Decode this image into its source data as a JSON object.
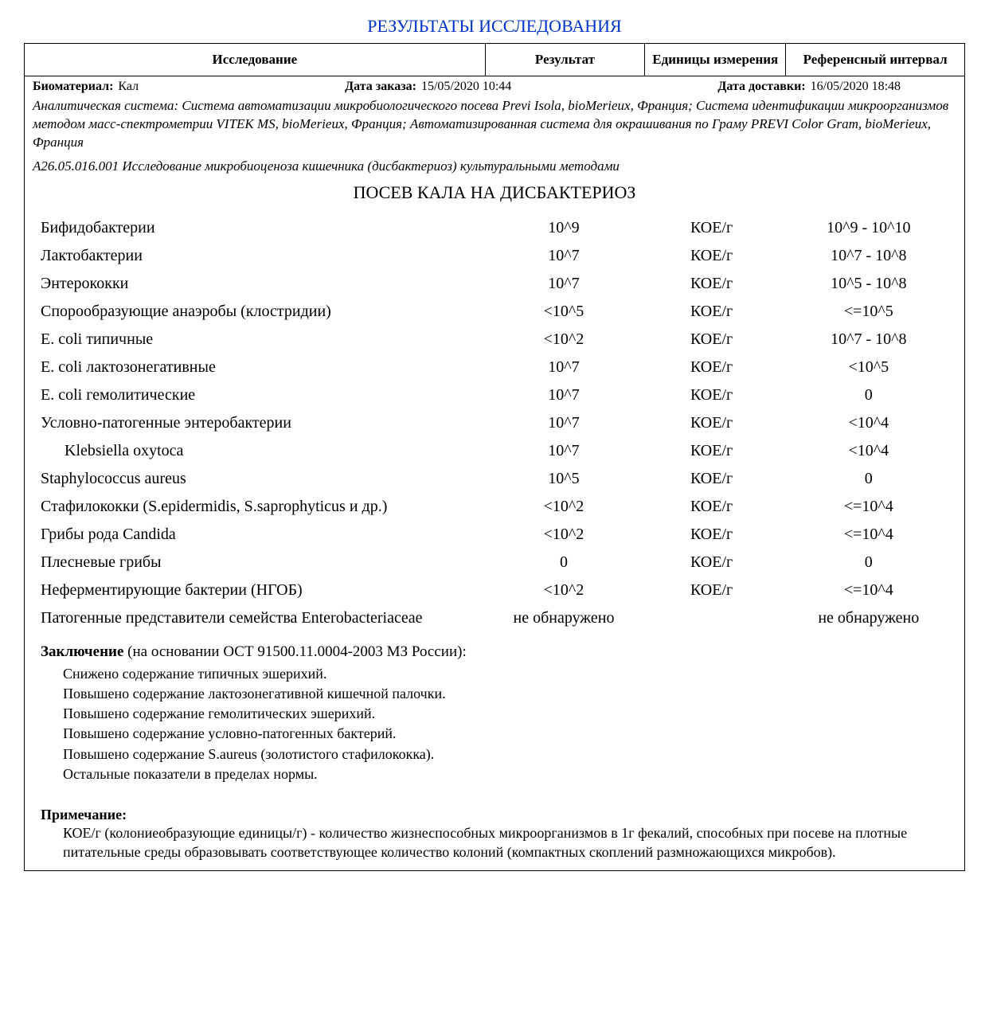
{
  "doc_title": "РЕЗУЛЬТАТЫ ИССЛЕДОВАНИЯ",
  "header": {
    "col_name": "Исследование",
    "col_res": "Результат",
    "col_unit": "Единицы измерения",
    "col_ref": "Референсный интервал"
  },
  "meta": {
    "biomaterial_label": "Биоматериал:",
    "biomaterial_value": "Кал",
    "order_date_label": "Дата заказа:",
    "order_date_value": "15/05/2020 10:44",
    "delivery_date_label": "Дата доставки:",
    "delivery_date_value": "16/05/2020 18:48"
  },
  "system_desc": "Аналитическая система: Система автоматизации микробиологического посева Previ Isola, bioMerieux, Франция; Система идентификации микроорганизмов методом масс-спектрометрии VITEK MS, bioMerieux, Франция; Автоматизированная система для окрашивания по Граму PREVI Color Gram, bioMerieux, Франция",
  "code_line": "А26.05.016.001 Исследование микробиоценоза кишечника (дисбактериоз) культуральными методами",
  "section_title": "ПОСЕВ КАЛА НА ДИСБАКТЕРИОЗ",
  "rows": [
    {
      "name": "Бифидобактерии",
      "res": "10^9",
      "unit": "КОЕ/г",
      "ref": "10^9 - 10^10",
      "indent": false
    },
    {
      "name": "Лактобактерии",
      "res": "10^7",
      "unit": "КОЕ/г",
      "ref": "10^7 - 10^8",
      "indent": false
    },
    {
      "name": "Энтерококки",
      "res": "10^7",
      "unit": "КОЕ/г",
      "ref": "10^5 - 10^8",
      "indent": false
    },
    {
      "name": "Спорообразующие анаэробы (клостридии)",
      "res": "<10^5",
      "unit": "КОЕ/г",
      "ref": "<=10^5",
      "indent": false
    },
    {
      "name": "E. coli типичные",
      "res": "<10^2",
      "unit": "КОЕ/г",
      "ref": "10^7 - 10^8",
      "indent": false
    },
    {
      "name": "E. coli лактозонегативные",
      "res": "10^7",
      "unit": "КОЕ/г",
      "ref": "<10^5",
      "indent": false
    },
    {
      "name": "E. coli гемолитические",
      "res": "10^7",
      "unit": "КОЕ/г",
      "ref": "0",
      "indent": false
    },
    {
      "name": "Условно-патогенные энтеробактерии",
      "res": "10^7",
      "unit": "КОЕ/г",
      "ref": "<10^4",
      "indent": false
    },
    {
      "name": "Klebsiella oxytoca",
      "res": "10^7",
      "unit": "КОЕ/г",
      "ref": "<10^4",
      "indent": true
    },
    {
      "name": "Staphylococcus aureus",
      "res": "10^5",
      "unit": "КОЕ/г",
      "ref": "0",
      "indent": false
    },
    {
      "name": "Стафилококки (S.epidermidis, S.saprophyticus и др.)",
      "res": "<10^2",
      "unit": "КОЕ/г",
      "ref": "<=10^4",
      "indent": false
    },
    {
      "name": "Грибы рода Candida",
      "res": "<10^2",
      "unit": "КОЕ/г",
      "ref": "<=10^4",
      "indent": false
    },
    {
      "name": "Плесневые грибы",
      "res": "0",
      "unit": "КОЕ/г",
      "ref": "0",
      "indent": false
    },
    {
      "name": "Неферментирующие бактерии (НГОБ)",
      "res": "<10^2",
      "unit": "КОЕ/г",
      "ref": "<=10^4",
      "indent": false
    },
    {
      "name": "Патогенные представители семейства Enterobacteriaceae",
      "res": "не обнаружено",
      "unit": "",
      "ref": "не обнаружено",
      "indent": false
    }
  ],
  "conclusion": {
    "head": "Заключение",
    "basis": "  (на основании ОСТ 91500.11.0004-2003 МЗ России):",
    "lines": [
      "Снижено содержание типичных эшерихий.",
      "Повышено содержание лактозонегативной кишечной палочки.",
      "Повышено содержание гемолитических эшерихий.",
      "Повышено содержание условно-патогенных бактерий.",
      "Повышено содержание S.aureus (золотистого стафилококка).",
      "Остальные показатели в пределах нормы."
    ]
  },
  "note": {
    "head": "Примечание:",
    "body": "КОЕ/г (колониеобразующие единицы/г) - количество жизнеспособных микроорганизмов в 1г фекалий, способных при посеве на плотные питательные среды образовывать соответствующее количество колоний (компактных скоплений размножающихся микробов)."
  }
}
